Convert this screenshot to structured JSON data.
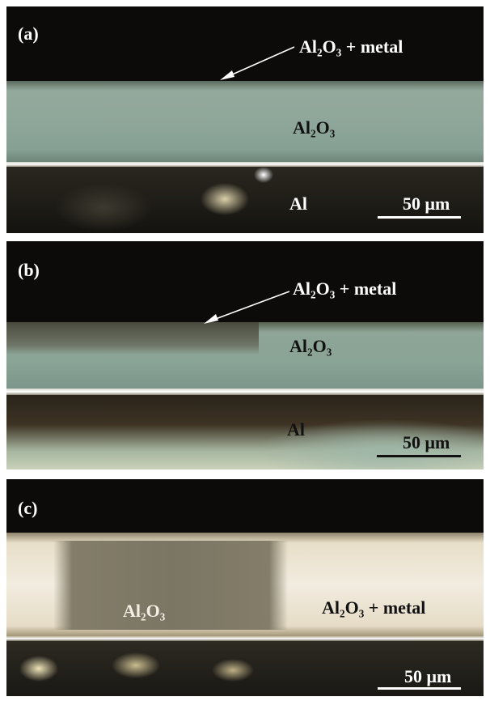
{
  "panels": [
    {
      "label": "(a)",
      "annotations": [
        "Al₂O₃ + metal",
        "Al₂O₃",
        "Al"
      ],
      "scale_bar": "50 μm"
    },
    {
      "label": "(b)",
      "annotations": [
        "Al₂O₃ + metal",
        "Al₂O₃",
        "Al"
      ],
      "scale_bar": "50 μm"
    },
    {
      "label": "(c)",
      "annotations": [
        "Al₂O₃",
        "Al₂O₃ + metal"
      ],
      "scale_bar": "50 μm"
    }
  ]
}
